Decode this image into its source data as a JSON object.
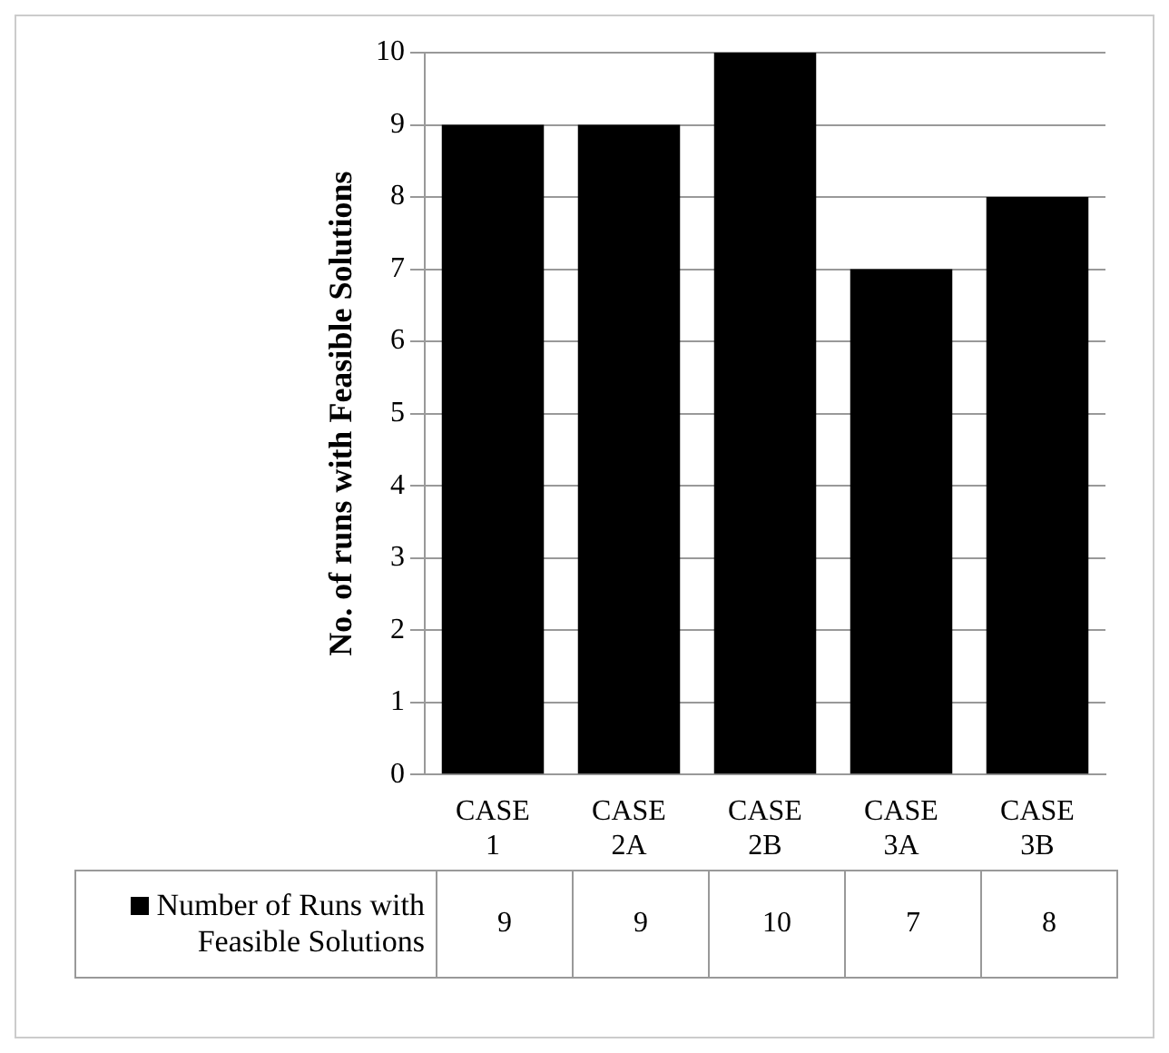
{
  "chart_data": {
    "type": "bar",
    "ylabel": "No. of runs with Feasible Solutions",
    "categories": [
      "CASE 1",
      "CASE 2A",
      "CASE 2B",
      "CASE 3A",
      "CASE 3B"
    ],
    "series": [
      {
        "name": "Number of Runs with Feasible Solutions",
        "color": "#000000",
        "values": [
          9,
          9,
          10,
          7,
          8
        ]
      }
    ],
    "ylim": [
      0,
      10
    ],
    "yticks": [
      0,
      1,
      2,
      3,
      4,
      5,
      6,
      7,
      8,
      9,
      10
    ],
    "grid": "y",
    "legend": "bottom left",
    "data_labels": true
  }
}
